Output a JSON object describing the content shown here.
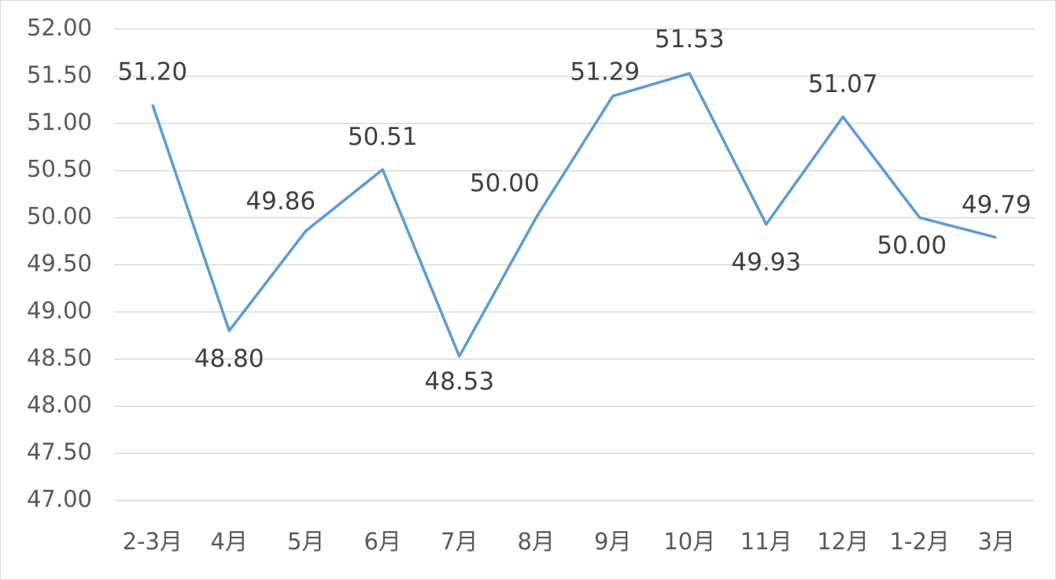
{
  "chart_data": {
    "type": "line",
    "categories": [
      "2-3月",
      "4月",
      "5月",
      "6月",
      "7月",
      "8月",
      "9月",
      "10月",
      "11月",
      "12月",
      "1-2月",
      "3月"
    ],
    "series": [
      {
        "color": "#5b9bd5",
        "values": [
          51.2,
          48.8,
          49.86,
          50.51,
          48.53,
          50,
          51.29,
          51.53,
          49.93,
          51.07,
          50,
          49.79
        ],
        "value_labels": [
          "51.20",
          "48.80",
          "49.86",
          "50.51",
          "48.53",
          "50.00",
          "51.29",
          "51.53",
          "49.93",
          "51.07",
          "50.00",
          "49.79"
        ]
      }
    ],
    "ylim": [
      47,
      52
    ],
    "yticks": [
      {
        "value": 47,
        "label": "47.00"
      },
      {
        "value": 47.5,
        "label": "47.50"
      },
      {
        "value": 48,
        "label": "48.00"
      },
      {
        "value": 48.5,
        "label": "48.50"
      },
      {
        "value": 49,
        "label": "49.00"
      },
      {
        "value": 49.5,
        "label": "49.50"
      },
      {
        "value": 50,
        "label": "50.00"
      },
      {
        "value": 50.5,
        "label": "50.50"
      },
      {
        "value": 51,
        "label": "51.00"
      },
      {
        "value": 51.5,
        "label": "51.50"
      },
      {
        "value": 52,
        "label": "52.00"
      }
    ],
    "grid": true
  }
}
